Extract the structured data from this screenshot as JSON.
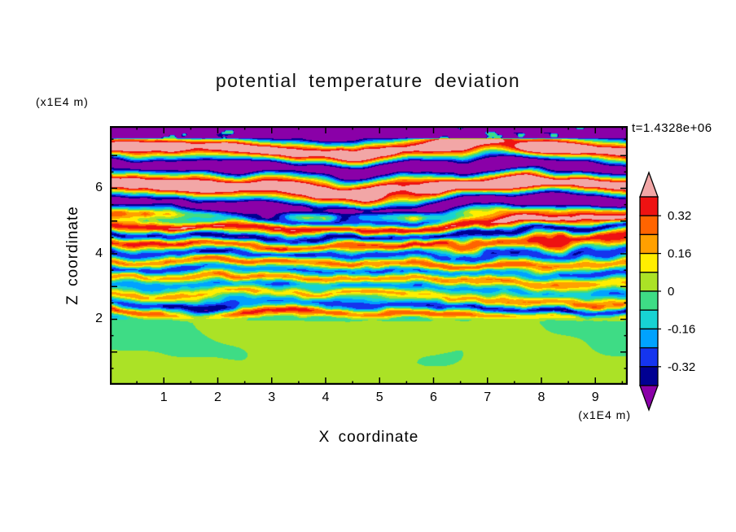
{
  "title": "potential temperature deviation",
  "timestamp": "t=1.4328e+06",
  "axes": {
    "x": {
      "label": "X coordinate",
      "unit": "(x1E4 m)",
      "min": 0,
      "max": 9.6,
      "major_ticks": [
        1,
        2,
        3,
        4,
        5,
        6,
        7,
        8,
        9
      ],
      "minor_tick_step": 0.5
    },
    "z": {
      "label": "Z coordinate",
      "unit": "(x1E4 m)",
      "min": 0,
      "max": 7.9,
      "labeled_ticks": [
        2,
        4,
        6
      ],
      "unlabeled_ticks": [
        1,
        3,
        5,
        7
      ],
      "minor_tick_step": 0.5
    }
  },
  "colorbar": {
    "labels": [
      "0.32",
      "0.16",
      "0",
      "-0.16",
      "-0.32"
    ],
    "label_values": [
      0.32,
      0.16,
      0,
      -0.16,
      -0.32
    ],
    "colors_top_to_bottom": [
      "#f2a6a6",
      "#ee1212",
      "#ff6400",
      "#ffa000",
      "#ffee00",
      "#abe226",
      "#3edc85",
      "#17d3d3",
      "#00a2ff",
      "#1535ee",
      "#000092",
      "#8a00a8"
    ],
    "arrow_top_color": "#f2a6a6",
    "arrow_bottom_color": "#8a00a8"
  },
  "chart_data": {
    "type": "heatmap",
    "title": "potential temperature deviation",
    "xlabel": "X coordinate",
    "ylabel": "Z coordinate",
    "x_unit": "(x1E4 m)",
    "y_unit": "(x1E4 m)",
    "time_label": "t=1.4328e+06",
    "x_range": [
      0,
      9.6
    ],
    "z_range": [
      0,
      7.9
    ],
    "x_ticks": [
      1,
      2,
      3,
      4,
      5,
      6,
      7,
      8,
      9
    ],
    "z_ticks": [
      2,
      4,
      6
    ],
    "value_label_min": -0.32,
    "value_label_max": 0.32,
    "contour_levels": [
      -0.4,
      -0.32,
      -0.24,
      -0.16,
      -0.08,
      0,
      0.08,
      0.16,
      0.24,
      0.32,
      0.4
    ],
    "palette_low_to_high": [
      "#8a00a8",
      "#000092",
      "#1535ee",
      "#00a2ff",
      "#17d3d3",
      "#3edc85",
      "#abe226",
      "#ffee00",
      "#ffa000",
      "#ff6400",
      "#ee1212",
      "#f2a6a6"
    ],
    "legend_position": "right",
    "grid": false,
    "regions": [
      {
        "z_range": [
          0,
          2.0
        ],
        "description": "smooth convective layer, deviation near 0: large green and yellow-green blobs"
      },
      {
        "z_range": [
          2.0,
          5.0
        ],
        "description": "turbulent layer: thin alternating warm (yellow/orange/red) and cool (cyan/blue) horizontal streaks on green background, amplitude increasing with height"
      },
      {
        "z_range": [
          5.0,
          7.55
        ],
        "description": "large-amplitude wavy bands alternating above +0.4 (pink/red) and below -0.4 (purple/navy)"
      },
      {
        "z_range": [
          7.55,
          7.9
        ],
        "description": "strongly negative cap (purple/navy) with small near-zero green patches"
      }
    ]
  }
}
